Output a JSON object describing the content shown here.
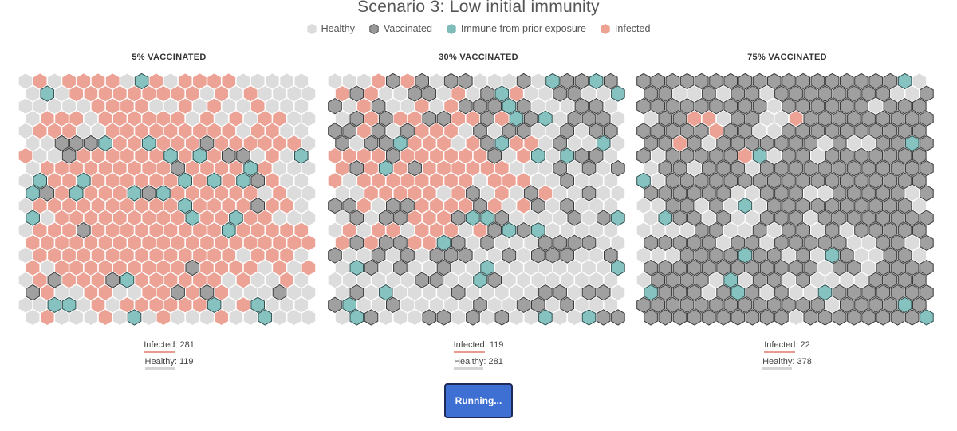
{
  "title": "Scenario 3: Low initial immunity",
  "legend": [
    {
      "label": "Healthy",
      "color": "#dcdcdc",
      "stroke": "#dcdcdc"
    },
    {
      "label": "Vaccinated",
      "color": "#999999",
      "stroke": "#555555"
    },
    {
      "label": "Immune from prior exposure",
      "color": "#7fbdbb",
      "stroke": "#7fbdbb"
    },
    {
      "label": "Infected",
      "color": "#eda292",
      "stroke": "#eda292"
    }
  ],
  "colors": {
    "healthy": "#dcdcdc",
    "vaccinated": "#a0a0a0",
    "vaccinated_stroke": "#3a3a3a",
    "immune": "#86c2c0",
    "immune_stroke": "#2f4f4f",
    "infected": "#eca395",
    "button": "#3e6fd2"
  },
  "grid": {
    "cols": 20,
    "rows": 20
  },
  "panels": [
    {
      "title": "5% VACCINATED",
      "infected_label": "Infected",
      "infected_count": "281",
      "healthy_label": "Healthy",
      "healthy_count": "119",
      "infected_fraction": 0.7025,
      "vaccinated_fraction": 0.05,
      "immune_fraction": 0.0725,
      "infected_center": [
        0.42,
        0.5
      ]
    },
    {
      "title": "30% VACCINATED",
      "infected_label": "Infected",
      "infected_count": "119",
      "healthy_label": "Healthy",
      "healthy_count": "281",
      "infected_fraction": 0.2975,
      "vaccinated_fraction": 0.3,
      "immune_fraction": 0.07,
      "infected_center": [
        0.28,
        0.35
      ]
    },
    {
      "title": "75% VACCINATED",
      "infected_label": "Infected",
      "infected_count": "22",
      "healthy_label": "Healthy",
      "healthy_count": "378",
      "infected_fraction": 0.055,
      "vaccinated_fraction": 0.75,
      "immune_fraction": 0.035,
      "infected_center": [
        0.3,
        0.2
      ]
    }
  ],
  "button": {
    "label": "Running..."
  }
}
